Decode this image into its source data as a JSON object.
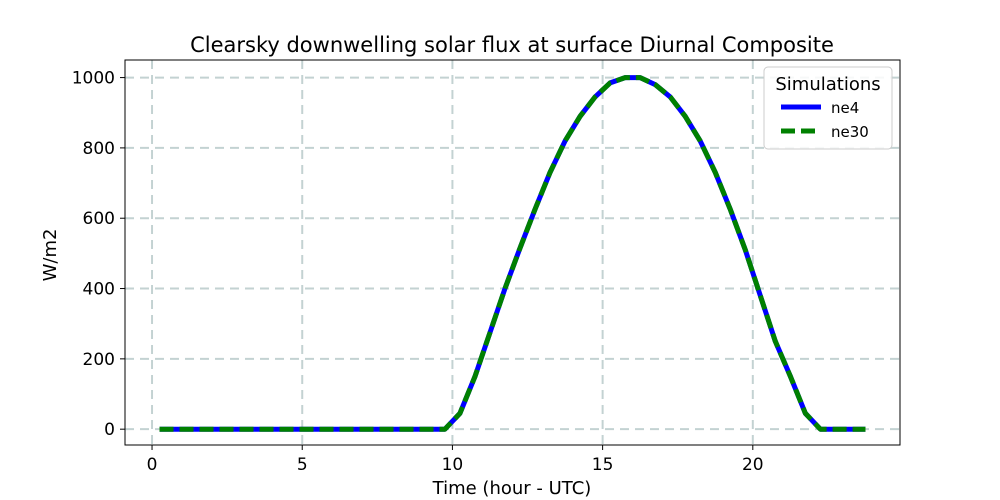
{
  "chart_data": {
    "type": "line",
    "title": "Clearsky downwelling solar flux at surface Diurnal Composite",
    "xlabel": "Time (hour - UTC)",
    "ylabel": "W/m2",
    "xlim": [
      -0.9,
      24.9
    ],
    "ylim": [
      -45,
      1050
    ],
    "xticks": [
      0,
      5,
      10,
      15,
      20
    ],
    "yticks": [
      0,
      200,
      400,
      600,
      800,
      1000
    ],
    "grid": true,
    "legend": {
      "title": "Simulations",
      "placement": "top-right"
    },
    "x": [
      0.25,
      0.75,
      1.25,
      1.75,
      2.25,
      2.75,
      3.25,
      3.75,
      4.25,
      4.75,
      5.25,
      5.75,
      6.25,
      6.75,
      7.25,
      7.75,
      8.25,
      8.75,
      9.25,
      9.75,
      10.25,
      10.75,
      11.25,
      11.75,
      12.25,
      12.75,
      13.25,
      13.75,
      14.25,
      14.75,
      15.25,
      15.75,
      16.25,
      16.75,
      17.25,
      17.75,
      18.25,
      18.75,
      19.25,
      19.75,
      20.25,
      20.75,
      21.25,
      21.75,
      22.25,
      22.75,
      23.25,
      23.75
    ],
    "series": [
      {
        "name": "ne4",
        "color": "#0000ff",
        "style": "solid",
        "values": [
          0,
          0,
          0,
          0,
          0,
          0,
          0,
          0,
          0,
          0,
          0,
          0,
          0,
          0,
          0,
          0,
          0,
          0,
          0,
          0,
          45,
          150,
          275,
          400,
          515,
          625,
          730,
          820,
          890,
          945,
          985,
          1000,
          1000,
          980,
          945,
          890,
          820,
          730,
          625,
          510,
          380,
          250,
          150,
          45,
          0,
          0,
          0,
          0
        ]
      },
      {
        "name": "ne30",
        "color": "#008000",
        "style": "dashed",
        "values": [
          0,
          0,
          0,
          0,
          0,
          0,
          0,
          0,
          0,
          0,
          0,
          0,
          0,
          0,
          0,
          0,
          0,
          0,
          0,
          0,
          45,
          150,
          275,
          400,
          515,
          625,
          730,
          820,
          890,
          945,
          985,
          1000,
          1000,
          980,
          945,
          890,
          820,
          730,
          625,
          510,
          380,
          250,
          150,
          45,
          0,
          0,
          0,
          0
        ]
      }
    ]
  }
}
